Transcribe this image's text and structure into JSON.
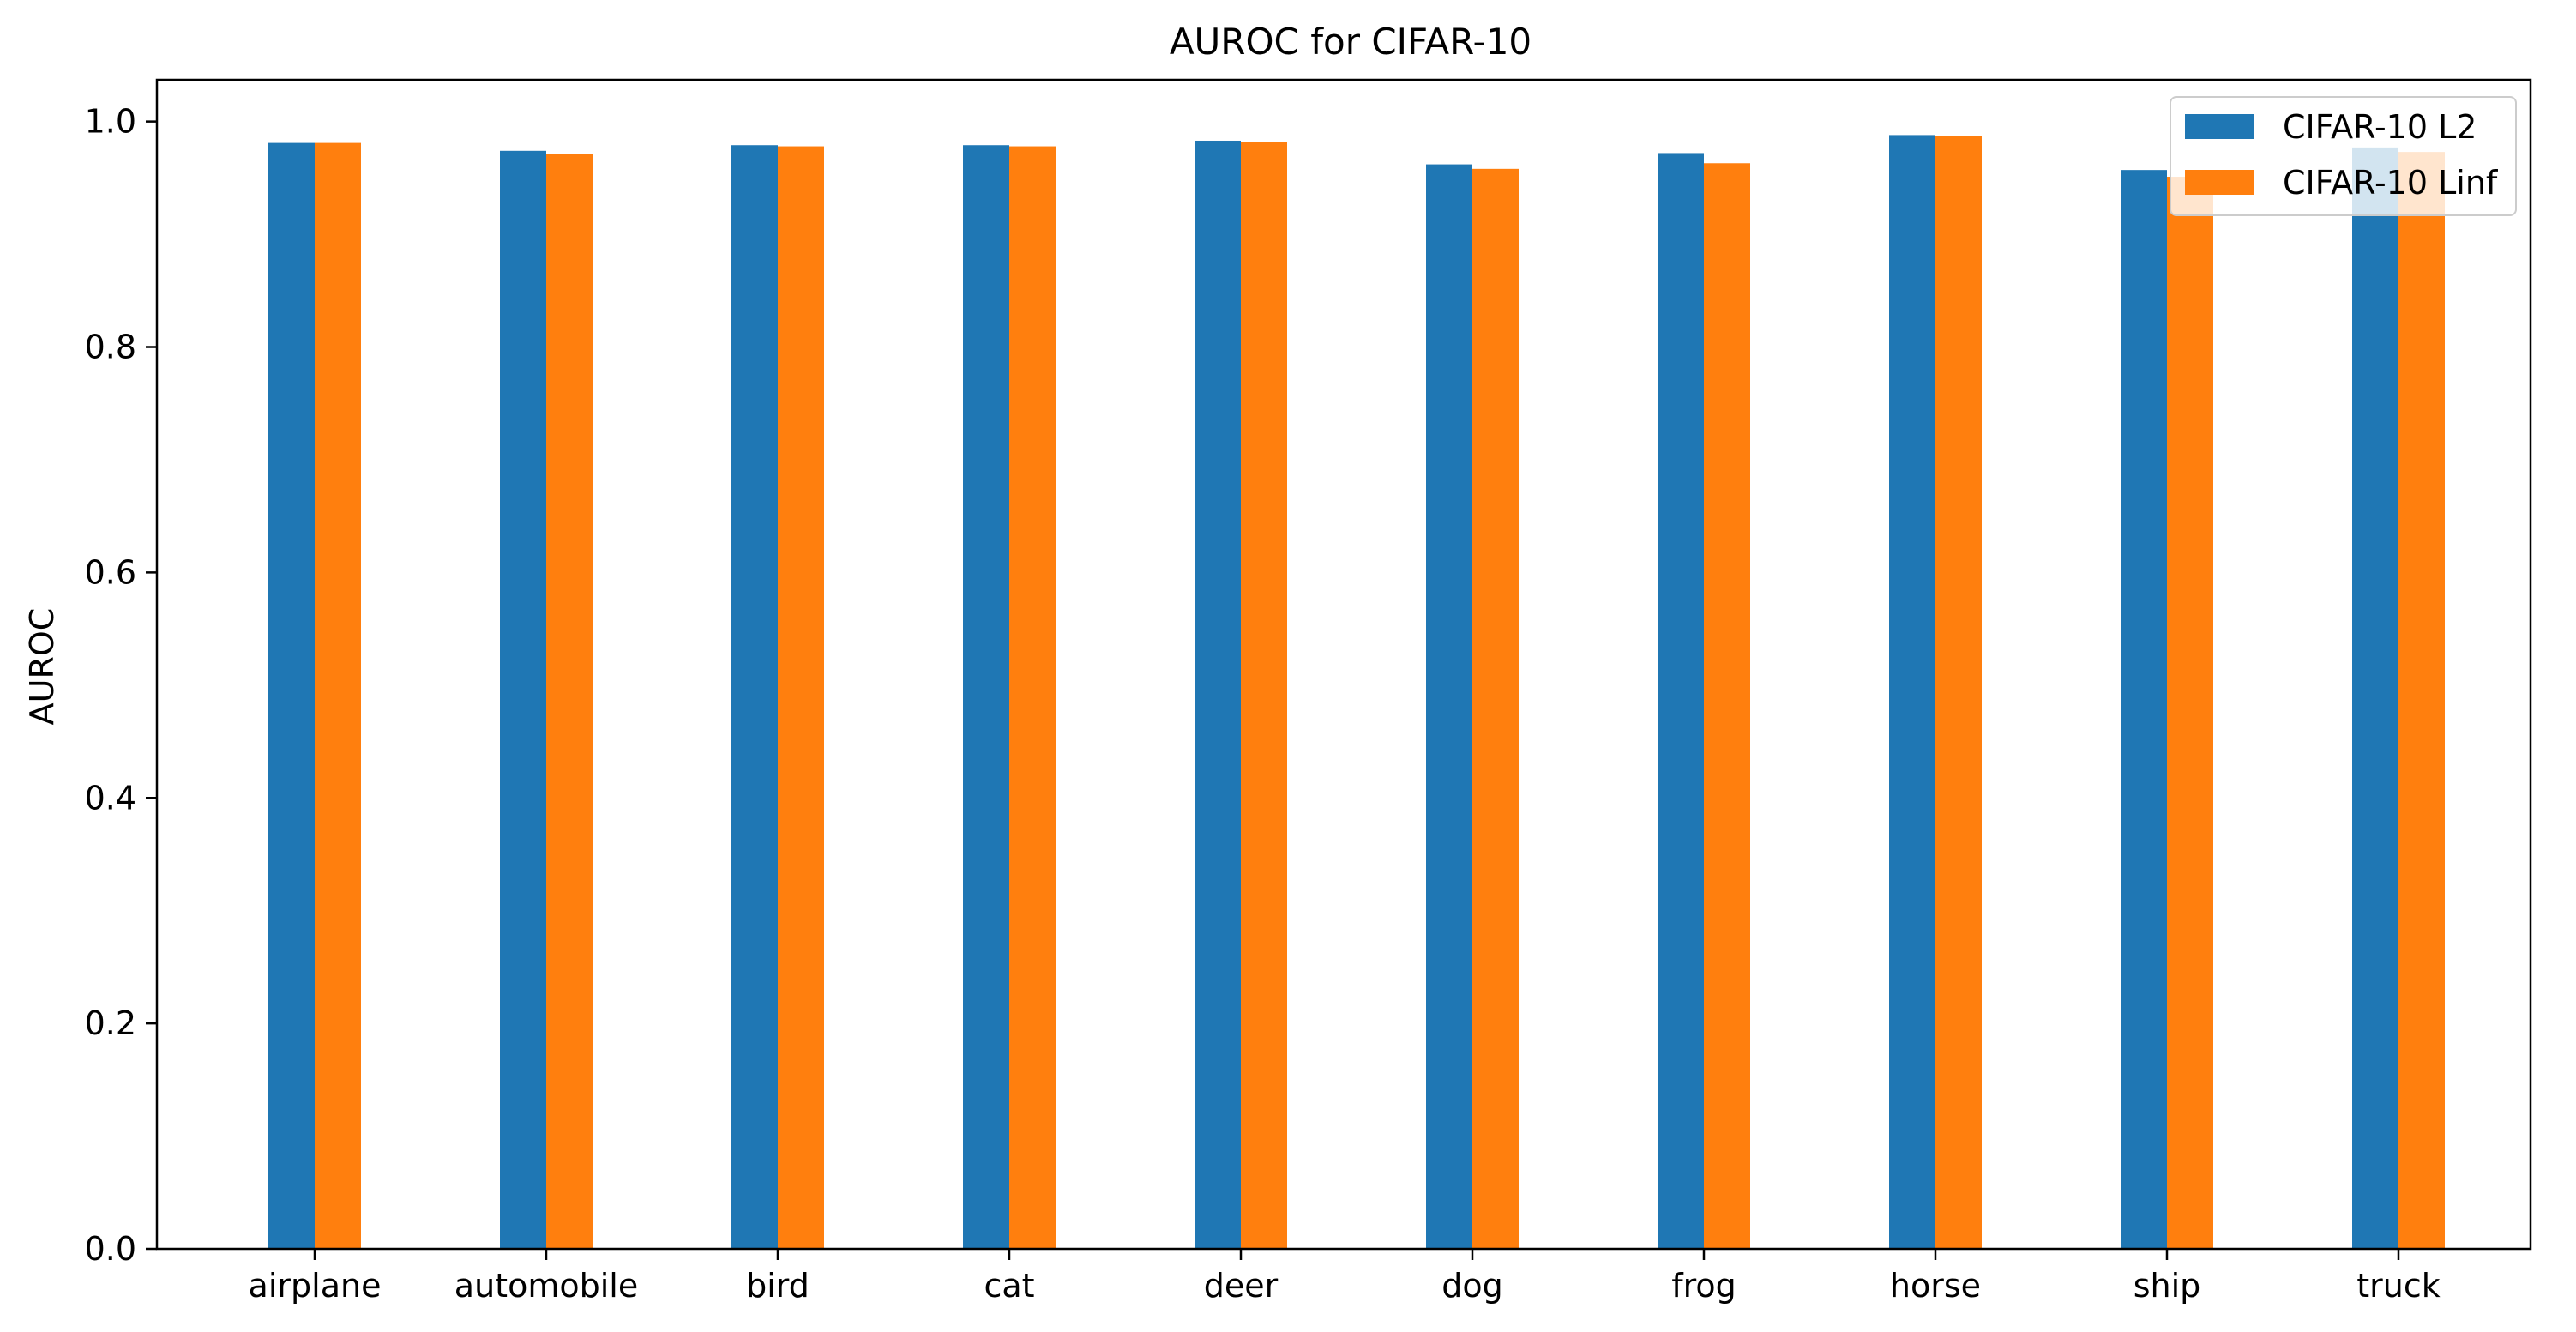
{
  "chart_data": {
    "type": "bar",
    "title": "AUROC for CIFAR-10",
    "xlabel": "",
    "ylabel": "AUROC",
    "ylim": [
      0,
      1.037
    ],
    "yticks": [
      0.0,
      0.2,
      0.4,
      0.6,
      0.8,
      1.0
    ],
    "ytick_labels": [
      "0.0",
      "0.2",
      "0.4",
      "0.6",
      "0.8",
      "1.0"
    ],
    "categories": [
      "airplane",
      "automobile",
      "bird",
      "cat",
      "deer",
      "dog",
      "frog",
      "horse",
      "ship",
      "truck"
    ],
    "series": [
      {
        "name": "CIFAR-10 L2",
        "color": "#1f77b4",
        "values": [
          0.981,
          0.974,
          0.979,
          0.979,
          0.983,
          0.962,
          0.972,
          0.988,
          0.957,
          0.977
        ]
      },
      {
        "name": "CIFAR-10 Linf",
        "color": "#ff7f0e",
        "values": [
          0.981,
          0.971,
          0.978,
          0.978,
          0.982,
          0.958,
          0.963,
          0.987,
          0.951,
          0.973
        ]
      }
    ],
    "legend_position": "top-right",
    "grid": false
  }
}
